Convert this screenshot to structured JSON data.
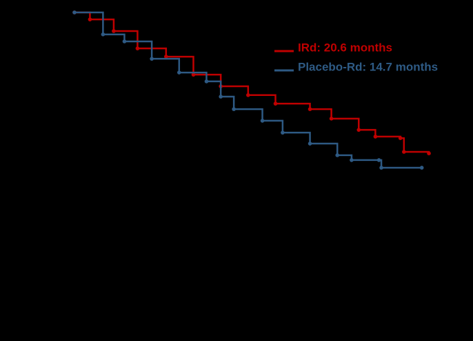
{
  "chart_data": {
    "type": "line",
    "xlim": [
      0,
      32
    ],
    "ylim": [
      0,
      1
    ],
    "step": true,
    "legend": "upper-right",
    "series": [
      {
        "name": "IRd: 20.6 months",
        "color": "#c00000",
        "x": [
          0,
          1.3,
          3.3,
          5.3,
          7.7,
          10.0,
          12.3,
          14.6,
          16.9,
          19.8,
          21.6,
          23.9,
          25.3,
          27.4,
          27.7,
          29.8
        ],
        "values": [
          1.0,
          0.977,
          0.939,
          0.882,
          0.855,
          0.796,
          0.758,
          0.729,
          0.701,
          0.683,
          0.652,
          0.615,
          0.593,
          0.588,
          0.543,
          0.538
        ]
      },
      {
        "name": "Placebo-Rd: 14.7 months",
        "color": "#2e5a84",
        "x": [
          0,
          2.4,
          4.2,
          6.5,
          8.8,
          11.1,
          12.3,
          13.4,
          15.8,
          17.5,
          19.8,
          22.1,
          23.3,
          25.6,
          25.8,
          29.2
        ],
        "values": [
          1.0,
          0.928,
          0.905,
          0.848,
          0.803,
          0.774,
          0.724,
          0.683,
          0.645,
          0.606,
          0.57,
          0.532,
          0.516,
          0.516,
          0.491,
          0.491
        ]
      }
    ]
  }
}
